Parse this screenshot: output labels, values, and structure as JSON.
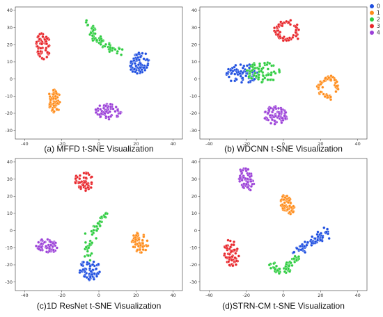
{
  "colors": {
    "0": "#1f4fe0",
    "1": "#ff8c1a",
    "2": "#2ecc40",
    "3": "#e8262b",
    "4": "#9b40d8"
  },
  "legend": [
    "0",
    "1",
    "2",
    "3",
    "4"
  ],
  "chart_data": [
    {
      "type": "scatter",
      "caption": "(a) MFFD t-SNE Visualization",
      "xlim": [
        -45,
        45
      ],
      "ylim": [
        -35,
        42
      ],
      "xticks": [
        "-40",
        "-20",
        "0",
        "20",
        "40"
      ],
      "yticks": [
        "-30",
        "-20",
        "-10",
        "0",
        "10",
        "20",
        "30",
        "40"
      ],
      "clusters": [
        {
          "label": "0",
          "shape": "blob",
          "cx": 22,
          "cy": 9,
          "rx": 5,
          "ry": 7,
          "rot": -20,
          "n": 75
        },
        {
          "label": "1",
          "shape": "blob",
          "cx": -24,
          "cy": -13,
          "rx": 3.5,
          "ry": 7,
          "rot": 0,
          "n": 60
        },
        {
          "label": "2",
          "shape": "path",
          "pts": [
            [
              -7,
              33
            ],
            [
              -3,
              30
            ],
            [
              -4,
              24
            ],
            [
              0,
              23
            ],
            [
              3,
              20
            ],
            [
              7,
              18
            ],
            [
              11,
              16
            ]
          ],
          "w": 2.3,
          "n": 70
        },
        {
          "label": "3",
          "shape": "blob",
          "cx": -30,
          "cy": 19,
          "rx": 4,
          "ry": 8,
          "rot": 0,
          "n": 60
        },
        {
          "label": "4",
          "shape": "blob",
          "cx": 5,
          "cy": -19,
          "rx": 7,
          "ry": 4.5,
          "rot": 0,
          "n": 65
        }
      ]
    },
    {
      "type": "scatter",
      "caption": "(b) WDCNN t-SNE Visualization",
      "xlim": [
        -45,
        45
      ],
      "ylim": [
        -35,
        42
      ],
      "xticks": [
        "-40",
        "-20",
        "0",
        "20",
        "40"
      ],
      "yticks": [
        "-30",
        "-20",
        "-10",
        "0",
        "10",
        "20",
        "30",
        "40"
      ],
      "clusters": [
        {
          "label": "0",
          "shape": "blob",
          "cx": -22,
          "cy": 3,
          "rx": 9,
          "ry": 6,
          "rot": 0,
          "n": 75
        },
        {
          "label": "1",
          "shape": "ring",
          "cx": 24,
          "cy": -5,
          "rx": 5,
          "ry": 5.5,
          "w": 1.6,
          "n": 70
        },
        {
          "label": "2",
          "shape": "blob",
          "cx": -11,
          "cy": 4,
          "rx": 9,
          "ry": 6,
          "rot": 0,
          "n": 70
        },
        {
          "label": "3",
          "shape": "ring",
          "cx": 2,
          "cy": 28,
          "rx": 5.5,
          "ry": 5,
          "w": 1.6,
          "n": 65
        },
        {
          "label": "4",
          "shape": "blob",
          "cx": -4,
          "cy": -21,
          "rx": 6.5,
          "ry": 5.5,
          "rot": 0,
          "n": 75
        }
      ]
    },
    {
      "type": "scatter",
      "caption": "(c)1D ResNet t-SNE Visualization",
      "xlim": [
        -45,
        45
      ],
      "ylim": [
        -35,
        42
      ],
      "xticks": [
        "-40",
        "-20",
        "0",
        "20",
        "40"
      ],
      "yticks": [
        "-30",
        "-20",
        "-10",
        "0",
        "10",
        "20",
        "30",
        "40"
      ],
      "clusters": [
        {
          "label": "0",
          "shape": "blob",
          "cx": -5,
          "cy": -23,
          "rx": 6,
          "ry": 6,
          "rot": 0,
          "n": 65
        },
        {
          "label": "1",
          "shape": "blob",
          "cx": 22,
          "cy": -7,
          "rx": 4.5,
          "ry": 6,
          "rot": 10,
          "n": 60
        },
        {
          "label": "2",
          "shape": "path",
          "pts": [
            [
              -6,
              -15
            ],
            [
              -5,
              -9
            ],
            [
              -4,
              -4
            ],
            [
              -2,
              0
            ],
            [
              -1,
              4
            ],
            [
              1,
              7
            ],
            [
              4,
              9
            ]
          ],
          "w": 1.8,
          "n": 55
        },
        {
          "label": "3",
          "shape": "blob",
          "cx": -8,
          "cy": 29,
          "rx": 5,
          "ry": 6,
          "rot": 15,
          "n": 60
        },
        {
          "label": "4",
          "shape": "blob",
          "cx": -28,
          "cy": -9,
          "rx": 6,
          "ry": 4,
          "rot": -10,
          "n": 60
        }
      ]
    },
    {
      "type": "scatter",
      "caption": "(d)STRN-CM t-SNE Visualization",
      "xlim": [
        -45,
        45
      ],
      "ylim": [
        -35,
        42
      ],
      "xticks": [
        "-40",
        "-20",
        "0",
        "20",
        "40"
      ],
      "yticks": [
        "-30",
        "-20",
        "-10",
        "0",
        "10",
        "20",
        "30",
        "40"
      ],
      "clusters": [
        {
          "label": "0",
          "shape": "path",
          "pts": [
            [
              6,
              -12
            ],
            [
              10,
              -10
            ],
            [
              14,
              -8
            ],
            [
              18,
              -5
            ],
            [
              21,
              -3
            ],
            [
              24,
              0
            ]
          ],
          "w": 2.6,
          "n": 75
        },
        {
          "label": "1",
          "shape": "blob",
          "cx": 2,
          "cy": 15,
          "rx": 3.5,
          "ry": 6,
          "rot": 20,
          "n": 60
        },
        {
          "label": "2",
          "shape": "path",
          "pts": [
            [
              -6,
              -18
            ],
            [
              -4,
              -23
            ],
            [
              0,
              -24
            ],
            [
              3,
              -20
            ],
            [
              6,
              -18
            ],
            [
              9,
              -15
            ]
          ],
          "w": 2.3,
          "n": 60
        },
        {
          "label": "3",
          "shape": "blob",
          "cx": -28,
          "cy": -13,
          "rx": 4,
          "ry": 8,
          "rot": 5,
          "n": 60
        },
        {
          "label": "4",
          "shape": "blob",
          "cx": -20,
          "cy": 30,
          "rx": 4,
          "ry": 7,
          "rot": 15,
          "n": 60
        }
      ]
    }
  ]
}
